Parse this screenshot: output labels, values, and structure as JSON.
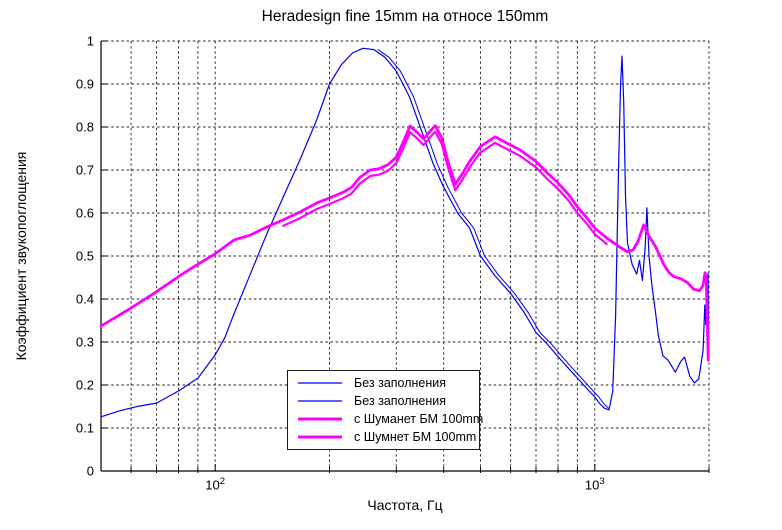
{
  "figure_title": "Heradesign fine 15mm на относе 150mm",
  "chart_data": {
    "type": "line",
    "title": "Heradesign fine 15mm на относе 150mm",
    "xlabel": "Частота, Гц",
    "ylabel": "Коэффициент звукопоглощения",
    "x_scale": "log",
    "x_range": [
      50,
      2000
    ],
    "y_range": [
      0,
      1
    ],
    "grid": "dashed",
    "grid_color": "#222222",
    "axis_color": "#000000",
    "x_major_ticks": [
      {
        "value": 100,
        "base": "10",
        "exp": "2"
      },
      {
        "value": 1000,
        "base": "10",
        "exp": "3"
      }
    ],
    "x_gridlines": [
      60,
      70,
      80,
      90,
      100,
      200,
      300,
      400,
      500,
      600,
      700,
      800,
      900,
      1000,
      2000
    ],
    "y_ticks": {
      "values": [
        0,
        0.1,
        0.2,
        0.3,
        0.4,
        0.5,
        0.6,
        0.7,
        0.8,
        0.9,
        1
      ],
      "labels": [
        "0",
        "0.1",
        "0.2",
        "0.3",
        "0.4",
        "0.5",
        "0.6",
        "0.7",
        "0.8",
        "0.9",
        "1"
      ]
    },
    "legend": {
      "position": "south-inside",
      "entries": [
        {
          "label": "Без заполнения",
          "color": "#0000ee",
          "line_width": 1.2
        },
        {
          "label": "Без заполнения",
          "color": "#0000ee",
          "line_width": 1.2
        },
        {
          "label": "с Шуманет БМ 100mm",
          "color": "#ff00ff",
          "line_width": 3
        },
        {
          "label": "с Шумнет БМ 100mm",
          "color": "#ff00ff",
          "line_width": 3
        }
      ]
    },
    "series": [
      {
        "name": "Без заполнения",
        "color": "#0000ee",
        "width": 1.2,
        "points": [
          [
            50,
            0.126
          ],
          [
            56,
            0.14
          ],
          [
            63,
            0.151
          ],
          [
            70,
            0.158
          ],
          [
            80,
            0.186
          ],
          [
            90,
            0.216
          ],
          [
            100,
            0.27
          ],
          [
            106,
            0.31
          ],
          [
            112,
            0.365
          ],
          [
            124,
            0.46
          ],
          [
            137,
            0.553
          ],
          [
            151,
            0.637
          ],
          [
            167,
            0.723
          ],
          [
            185,
            0.816
          ],
          [
            200,
            0.9
          ],
          [
            215,
            0.945
          ],
          [
            230,
            0.972
          ],
          [
            245,
            0.983
          ],
          [
            262,
            0.98
          ],
          [
            280,
            0.962
          ],
          [
            300,
            0.93
          ],
          [
            325,
            0.87
          ],
          [
            350,
            0.79
          ],
          [
            375,
            0.715
          ],
          [
            400,
            0.66
          ],
          [
            435,
            0.6
          ],
          [
            468,
            0.565
          ],
          [
            500,
            0.5
          ],
          [
            545,
            0.455
          ],
          [
            600,
            0.413
          ],
          [
            650,
            0.37
          ],
          [
            700,
            0.322
          ],
          [
            750,
            0.295
          ],
          [
            800,
            0.266
          ],
          [
            850,
            0.24
          ],
          [
            900,
            0.216
          ],
          [
            950,
            0.193
          ],
          [
            1000,
            0.172
          ],
          [
            1030,
            0.157
          ],
          [
            1060,
            0.146
          ],
          [
            1090,
            0.142
          ],
          [
            1115,
            0.185
          ],
          [
            1135,
            0.36
          ],
          [
            1155,
            0.7
          ],
          [
            1170,
            0.9
          ],
          [
            1180,
            0.965
          ],
          [
            1192,
            0.86
          ],
          [
            1205,
            0.64
          ],
          [
            1220,
            0.53
          ],
          [
            1255,
            0.48
          ],
          [
            1290,
            0.458
          ],
          [
            1312,
            0.49
          ],
          [
            1335,
            0.443
          ],
          [
            1358,
            0.52
          ],
          [
            1372,
            0.612
          ],
          [
            1390,
            0.5
          ],
          [
            1415,
            0.43
          ],
          [
            1450,
            0.36
          ],
          [
            1470,
            0.316
          ],
          [
            1512,
            0.268
          ],
          [
            1560,
            0.258
          ],
          [
            1630,
            0.23
          ],
          [
            1685,
            0.255
          ],
          [
            1725,
            0.265
          ],
          [
            1780,
            0.22
          ],
          [
            1830,
            0.205
          ],
          [
            1880,
            0.214
          ],
          [
            1930,
            0.281
          ],
          [
            1950,
            0.386
          ],
          [
            1962,
            0.34
          ],
          [
            1978,
            0.43
          ],
          [
            1988,
            0.46
          ],
          [
            1996,
            0.26
          ]
        ]
      },
      {
        "name": "Без заполнения",
        "color": "#0000ee",
        "width": 1.0,
        "same_as": 0,
        "f_min": 250,
        "f_max": 1080,
        "x_factor": 1.025
      },
      {
        "name": "с Шуманет БМ 100mm",
        "color": "#ff00ff",
        "width": 2.8,
        "points": [
          [
            50,
            0.337
          ],
          [
            60,
            0.379
          ],
          [
            70,
            0.417
          ],
          [
            80,
            0.452
          ],
          [
            90,
            0.481
          ],
          [
            100,
            0.505
          ],
          [
            112,
            0.537
          ],
          [
            124,
            0.549
          ],
          [
            137,
            0.568
          ],
          [
            151,
            0.584
          ],
          [
            167,
            0.602
          ],
          [
            185,
            0.623
          ],
          [
            200,
            0.635
          ],
          [
            217,
            0.648
          ],
          [
            229,
            0.66
          ],
          [
            240,
            0.682
          ],
          [
            256,
            0.7
          ],
          [
            270,
            0.703
          ],
          [
            285,
            0.712
          ],
          [
            300,
            0.73
          ],
          [
            313,
            0.765
          ],
          [
            326,
            0.802
          ],
          [
            340,
            0.788
          ],
          [
            354,
            0.772
          ],
          [
            368,
            0.79
          ],
          [
            380,
            0.803
          ],
          [
            395,
            0.775
          ],
          [
            412,
            0.715
          ],
          [
            429,
            0.667
          ],
          [
            447,
            0.69
          ],
          [
            468,
            0.72
          ],
          [
            500,
            0.755
          ],
          [
            546,
            0.777
          ],
          [
            600,
            0.758
          ],
          [
            635,
            0.747
          ],
          [
            700,
            0.72
          ],
          [
            750,
            0.693
          ],
          [
            800,
            0.67
          ],
          [
            855,
            0.642
          ],
          [
            900,
            0.614
          ],
          [
            955,
            0.588
          ],
          [
            1000,
            0.565
          ],
          [
            1075,
            0.542
          ],
          [
            1150,
            0.524
          ],
          [
            1215,
            0.51
          ],
          [
            1262,
            0.514
          ],
          [
            1300,
            0.534
          ],
          [
            1345,
            0.572
          ],
          [
            1392,
            0.545
          ],
          [
            1450,
            0.52
          ],
          [
            1520,
            0.48
          ],
          [
            1574,
            0.46
          ],
          [
            1615,
            0.452
          ],
          [
            1690,
            0.447
          ],
          [
            1755,
            0.438
          ],
          [
            1820,
            0.423
          ],
          [
            1890,
            0.419
          ],
          [
            1930,
            0.432
          ],
          [
            1952,
            0.461
          ],
          [
            1968,
            0.44
          ],
          [
            1980,
            0.35
          ],
          [
            1990,
            0.258
          ]
        ]
      },
      {
        "name": "с Шумнет БМ 100mm",
        "color": "#ff00ff",
        "width": 2.2,
        "same_as": 2,
        "f_min": 140,
        "f_max": 1100,
        "y_offset": -0.014
      }
    ]
  }
}
